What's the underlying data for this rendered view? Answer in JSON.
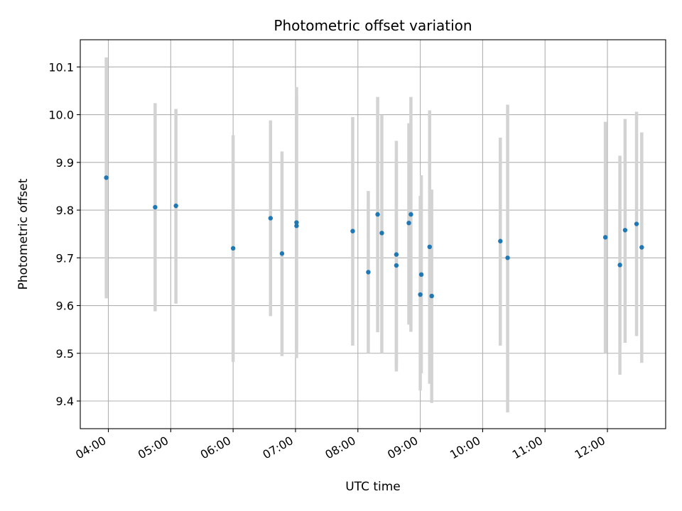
{
  "chart_data": {
    "type": "scatter",
    "title": "Photometric offset variation",
    "xlabel": "UTC time",
    "ylabel": "Photometric offset",
    "x_tick_labels": [
      "04:00",
      "05:00",
      "06:00",
      "07:00",
      "08:00",
      "09:00",
      "10:00",
      "11:00",
      "12:00"
    ],
    "x_ticks": [
      "04:00",
      "05:00",
      "06:00",
      "07:00",
      "08:00",
      "09:00",
      "10:00",
      "11:00",
      "12:00"
    ],
    "xlim": [
      "03:33",
      "12:56"
    ],
    "y_tick_labels": [
      "9.4",
      "9.5",
      "9.6",
      "9.7",
      "9.8",
      "9.9",
      "10.0",
      "10.1"
    ],
    "y_ticks": [
      9.4,
      9.5,
      9.6,
      9.7,
      9.8,
      9.9,
      10.0,
      10.1
    ],
    "ylim": [
      9.342,
      10.157
    ],
    "grid": true,
    "point_color": "#1f77b4",
    "errorbar_color": "#d3d3d3",
    "points": [
      {
        "x": "03:58",
        "y": 9.868,
        "yerr_low": 9.615,
        "yerr_high": 10.12
      },
      {
        "x": "04:45",
        "y": 9.806,
        "yerr_low": 9.588,
        "yerr_high": 10.024
      },
      {
        "x": "05:05",
        "y": 9.809,
        "yerr_low": 9.604,
        "yerr_high": 10.012
      },
      {
        "x": "06:00",
        "y": 9.72,
        "yerr_low": 9.482,
        "yerr_high": 9.957
      },
      {
        "x": "06:36",
        "y": 9.783,
        "yerr_low": 9.578,
        "yerr_high": 9.988
      },
      {
        "x": "06:47",
        "y": 9.709,
        "yerr_low": 9.494,
        "yerr_high": 9.923
      },
      {
        "x": "07:01",
        "y": 9.767,
        "yerr_low": 9.49,
        "yerr_high": 10.04
      },
      {
        "x": "07:01",
        "y": 9.774,
        "yerr_low": 9.51,
        "yerr_high": 10.058
      },
      {
        "x": "07:55",
        "y": 9.756,
        "yerr_low": 9.516,
        "yerr_high": 9.995
      },
      {
        "x": "08:10",
        "y": 9.67,
        "yerr_low": 9.5,
        "yerr_high": 9.84
      },
      {
        "x": "08:19",
        "y": 9.791,
        "yerr_low": 9.544,
        "yerr_high": 10.037
      },
      {
        "x": "08:23",
        "y": 9.752,
        "yerr_low": 9.5,
        "yerr_high": 10.0
      },
      {
        "x": "08:37",
        "y": 9.707,
        "yerr_low": 9.47,
        "yerr_high": 9.945
      },
      {
        "x": "08:37",
        "y": 9.684,
        "yerr_low": 9.462,
        "yerr_high": 9.905
      },
      {
        "x": "08:49",
        "y": 9.773,
        "yerr_low": 9.56,
        "yerr_high": 9.982
      },
      {
        "x": "08:51",
        "y": 9.791,
        "yerr_low": 9.545,
        "yerr_high": 10.037
      },
      {
        "x": "09:00",
        "y": 9.623,
        "yerr_low": 9.422,
        "yerr_high": 9.83
      },
      {
        "x": "09:01",
        "y": 9.665,
        "yerr_low": 9.458,
        "yerr_high": 9.873
      },
      {
        "x": "09:09",
        "y": 9.723,
        "yerr_low": 9.436,
        "yerr_high": 10.009
      },
      {
        "x": "09:11",
        "y": 9.62,
        "yerr_low": 9.396,
        "yerr_high": 9.843
      },
      {
        "x": "10:17",
        "y": 9.735,
        "yerr_low": 9.516,
        "yerr_high": 9.952
      },
      {
        "x": "10:24",
        "y": 9.7,
        "yerr_low": 9.376,
        "yerr_high": 10.021
      },
      {
        "x": "11:58",
        "y": 9.743,
        "yerr_low": 9.5,
        "yerr_high": 9.985
      },
      {
        "x": "12:12",
        "y": 9.685,
        "yerr_low": 9.455,
        "yerr_high": 9.914
      },
      {
        "x": "12:17",
        "y": 9.758,
        "yerr_low": 9.522,
        "yerr_high": 9.991
      },
      {
        "x": "12:28",
        "y": 9.771,
        "yerr_low": 9.536,
        "yerr_high": 10.006
      },
      {
        "x": "12:33",
        "y": 9.722,
        "yerr_low": 9.48,
        "yerr_high": 9.963
      }
    ]
  }
}
